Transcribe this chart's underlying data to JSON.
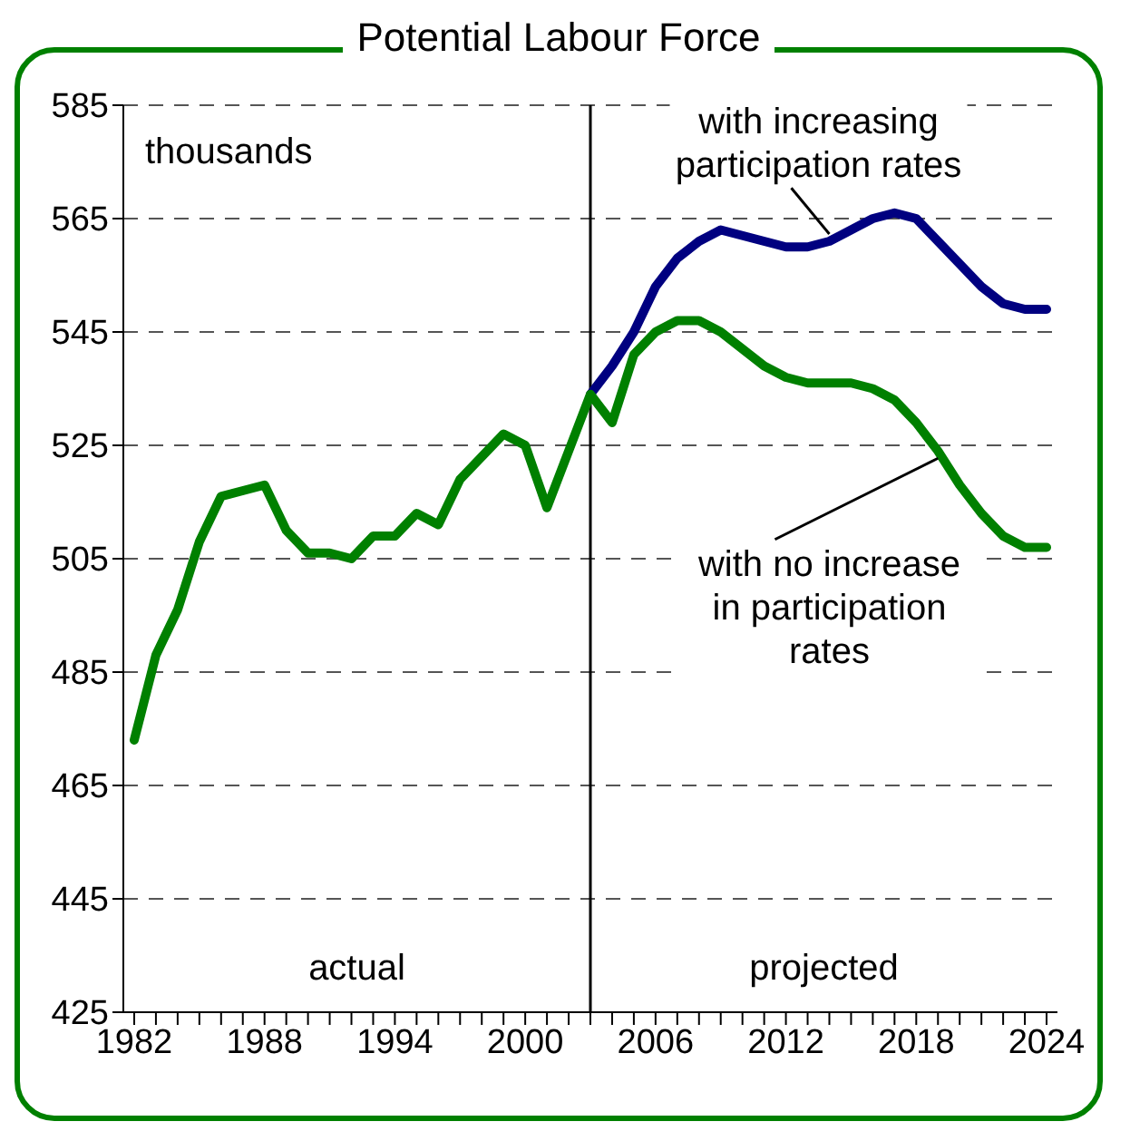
{
  "chart_data": {
    "type": "line",
    "title": "Potential Labour Force",
    "annotations": [
      "thousands",
      "actual",
      "projected"
    ],
    "xlim": [
      1981.5,
      2024.5
    ],
    "xticks": [
      1982,
      {
        "value": 1983,
        "label": null
      },
      {
        "value": 1984,
        "label": null
      },
      {
        "value": 1985,
        "label": null
      },
      {
        "value": 1986,
        "label": null
      },
      {
        "value": 1987,
        "label": null
      },
      1988,
      {
        "value": 1989,
        "label": null
      },
      {
        "value": 1990,
        "label": null
      },
      {
        "value": 1991,
        "label": null
      },
      {
        "value": 1992,
        "label": null
      },
      {
        "value": 1993,
        "label": null
      },
      1994,
      {
        "value": 1995,
        "label": null
      },
      {
        "value": 1996,
        "label": null
      },
      {
        "value": 1997,
        "label": null
      },
      {
        "value": 1998,
        "label": null
      },
      {
        "value": 1999,
        "label": null
      },
      2000,
      {
        "value": 2001,
        "label": null
      },
      {
        "value": 2002,
        "label": null
      },
      {
        "value": 2003,
        "label": null
      },
      {
        "value": 2004,
        "label": null
      },
      {
        "value": 2005,
        "label": null
      },
      2006,
      {
        "value": 2007,
        "label": null
      },
      {
        "value": 2008,
        "label": null
      },
      {
        "value": 2009,
        "label": null
      },
      {
        "value": 2010,
        "label": null
      },
      {
        "value": 2011,
        "label": null
      },
      2012,
      {
        "value": 2013,
        "label": null
      },
      {
        "value": 2014,
        "label": null
      },
      {
        "value": 2015,
        "label": null
      },
      {
        "value": 2016,
        "label": null
      },
      {
        "value": 2017,
        "label": null
      },
      2018,
      {
        "value": 2019,
        "label": null
      },
      {
        "value": 2020,
        "label": null
      },
      {
        "value": 2021,
        "label": null
      },
      {
        "value": 2022,
        "label": null
      },
      {
        "value": 2023,
        "label": null
      },
      2024
    ],
    "ylim": [
      425,
      585
    ],
    "yticks": [
      425,
      445,
      465,
      485,
      505,
      525,
      545,
      565,
      585
    ],
    "grid": "y",
    "marker": "none",
    "line_style": "solid",
    "ref_lines": [
      {
        "axis": "x",
        "value": 2003,
        "color": "#000000"
      }
    ],
    "series": [
      {
        "name": "with increasing participation rates",
        "color": "#000080",
        "x": [
          2003,
          2004,
          2005,
          2006,
          2007,
          2008,
          2009,
          2010,
          2011,
          2012,
          2013,
          2014,
          2015,
          2016,
          2017,
          2018,
          2019,
          2020,
          2021,
          2022,
          2023,
          2024
        ],
        "values": [
          534,
          539,
          545,
          553,
          558,
          561,
          563,
          562,
          561,
          560,
          560,
          561,
          563,
          565,
          566,
          565,
          561,
          557,
          553,
          550,
          549,
          549
        ]
      },
      {
        "name": "with no increase in participation rates",
        "color": "#008000",
        "x": [
          1982,
          1983,
          1984,
          1985,
          1986,
          1987,
          1988,
          1989,
          1990,
          1991,
          1992,
          1993,
          1994,
          1995,
          1996,
          1997,
          1998,
          1999,
          2000,
          2001,
          2002,
          2003,
          2004,
          2005,
          2006,
          2007,
          2008,
          2009,
          2010,
          2011,
          2012,
          2013,
          2014,
          2015,
          2016,
          2017,
          2018,
          2019,
          2020,
          2021,
          2022,
          2023,
          2024
        ],
        "values": [
          473,
          488,
          496,
          508,
          516,
          517,
          518,
          510,
          506,
          506,
          505,
          509,
          509,
          513,
          511,
          519,
          523,
          527,
          525,
          514,
          524,
          534,
          529,
          541,
          545,
          547,
          547,
          545,
          542,
          539,
          537,
          536,
          536,
          536,
          535,
          533,
          529,
          524,
          518,
          513,
          509,
          507,
          507
        ]
      }
    ]
  }
}
